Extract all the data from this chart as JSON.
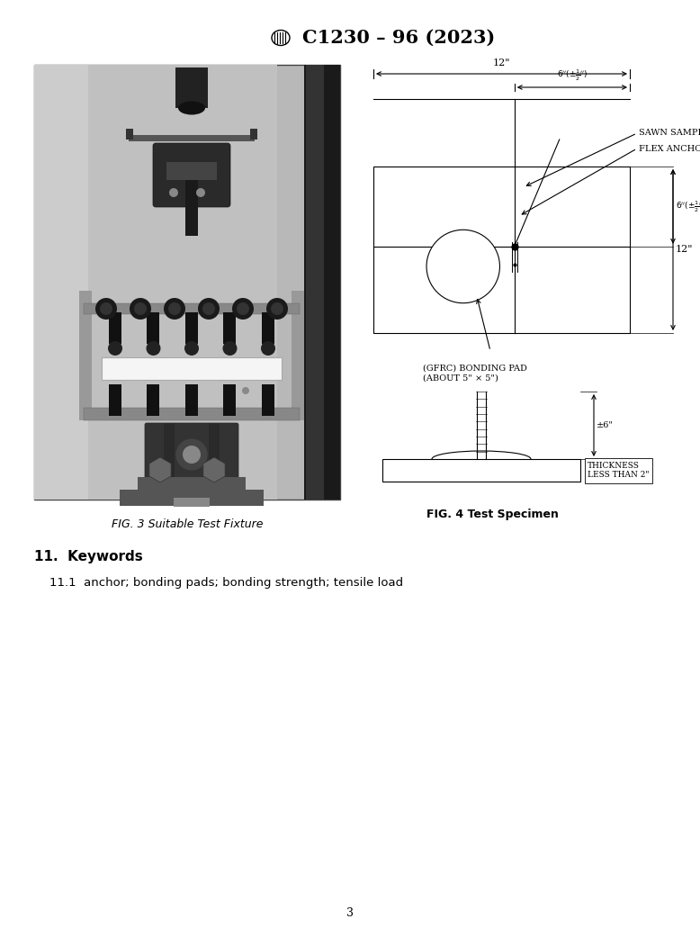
{
  "title": "C1230 – 96 (2023)",
  "bg_color": "#ffffff",
  "fig3_caption": "FIG. 3 Suitable Test Fixture",
  "fig4_caption": "FIG. 4 Test Specimen",
  "keywords_heading": "11.  Keywords",
  "keywords_text": "11.1  anchor; bonding pads; bonding strength; tensile load",
  "page_number": "3",
  "label_sawn": "SAWN SAMPLE",
  "label_flex": "FLEX ANCHOR",
  "label_gfrc": "(GFRC) BONDING PAD\n(ABOUT 5\" × 5\")",
  "label_thick": "THICKNESS\nLESS THAN 2\"",
  "dim_12_horiz": "12\"",
  "dim_12_vert": "12\"",
  "dim_6_side": "±6\""
}
